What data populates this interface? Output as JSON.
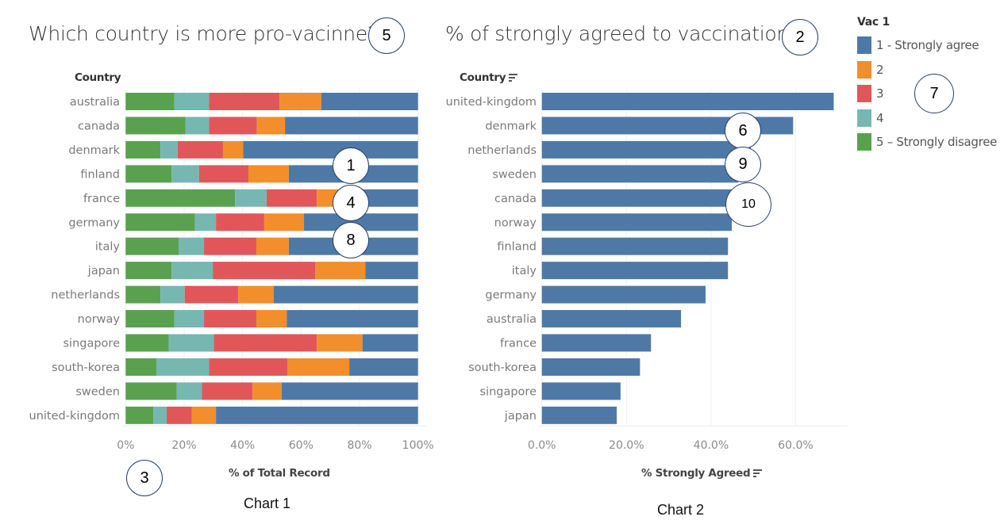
{
  "chart_data": [
    {
      "type": "bar",
      "orientation": "horizontal",
      "stacked": true,
      "normalized": true,
      "title": "Which country is more pro-vacinne?",
      "ylabel": "Country",
      "xlabel": "% of Total Record",
      "caption": "Chart 1",
      "xlim": [
        0,
        100
      ],
      "xticks": [
        "0%",
        "20%",
        "40%",
        "60%",
        "80%",
        "100%"
      ],
      "tick_values": [
        0,
        20,
        40,
        60,
        80,
        100
      ],
      "categories": [
        "australia",
        "canada",
        "denmark",
        "finland",
        "france",
        "germany",
        "italy",
        "japan",
        "netherlands",
        "norway",
        "singapore",
        "south-korea",
        "sweden",
        "united-kingdom"
      ],
      "series": [
        {
          "name": "5 - Strongly disagree",
          "color": "#59a14f",
          "values": [
            16.7,
            20.5,
            11.9,
            15.7,
            37.4,
            23.7,
            18.2,
            15.7,
            11.9,
            16.7,
            14.7,
            10.5,
            17.5,
            9.5
          ]
        },
        {
          "name": "4",
          "color": "#76b7b2",
          "values": [
            11.8,
            8.0,
            5.9,
            9.4,
            10.8,
            7.2,
            8.6,
            14.1,
            8.3,
            10.1,
            15.5,
            18.0,
            8.6,
            4.5
          ]
        },
        {
          "name": "3",
          "color": "#e15759",
          "values": [
            24.1,
            16.4,
            15.5,
            16.9,
            17.2,
            16.5,
            17.9,
            35.0,
            18.3,
            17.9,
            35.2,
            26.8,
            17.3,
            8.6
          ]
        },
        {
          "name": "2",
          "color": "#f28e2b",
          "values": [
            14.3,
            9.6,
            6.9,
            13.8,
            8.9,
            13.6,
            11.1,
            17.2,
            12.1,
            10.4,
            15.6,
            21.2,
            10.0,
            8.3
          ]
        },
        {
          "name": "1 - Strongly agree",
          "color": "#4e79a7",
          "values": [
            33.1,
            45.5,
            59.8,
            44.2,
            25.7,
            39.0,
            44.2,
            18.0,
            49.4,
            44.9,
            19.0,
            23.5,
            46.6,
            69.1
          ]
        }
      ],
      "grid": true
    },
    {
      "type": "bar",
      "orientation": "horizontal",
      "title": "% of strongly agreed to vaccination",
      "ylabel": "Country",
      "xlabel": "% Strongly Agreed",
      "caption": "Chart 2",
      "xlim": [
        0,
        72
      ],
      "xticks": [
        "0.0%",
        "20.0%",
        "40.0%",
        "60.0%"
      ],
      "tick_values": [
        0,
        20,
        40,
        60
      ],
      "color": "#4e79a7",
      "categories": [
        "united-kingdom",
        "denmark",
        "netherlands",
        "sweden",
        "canada",
        "norway",
        "finland",
        "italy",
        "germany",
        "australia",
        "france",
        "south-korea",
        "singapore",
        "japan"
      ],
      "values": [
        69.0,
        59.4,
        49.4,
        46.4,
        45.5,
        44.9,
        44.0,
        44.0,
        38.7,
        32.9,
        25.8,
        23.2,
        18.6,
        17.7
      ],
      "sorted": "descending",
      "grid": true
    }
  ],
  "legend": {
    "title": "Vac 1",
    "position": "top-right",
    "items": [
      {
        "label": "1 - Strongly agree",
        "color": "#4e79a7"
      },
      {
        "label": "2",
        "color": "#f28e2b"
      },
      {
        "label": "3",
        "color": "#e15759"
      },
      {
        "label": "4",
        "color": "#76b7b2"
      },
      {
        "label": "5 – Strongly disagree",
        "color": "#59a14f"
      }
    ]
  },
  "callouts": {
    "c1": "1",
    "c2": "2",
    "c3": "3",
    "c4": "4",
    "c5": "5",
    "c6": "6",
    "c7": "7",
    "c8": "8",
    "c9": "9",
    "c10": "10"
  },
  "colors": {
    "axis_text": "#7a7a7a",
    "grid": "#eeeeee"
  }
}
